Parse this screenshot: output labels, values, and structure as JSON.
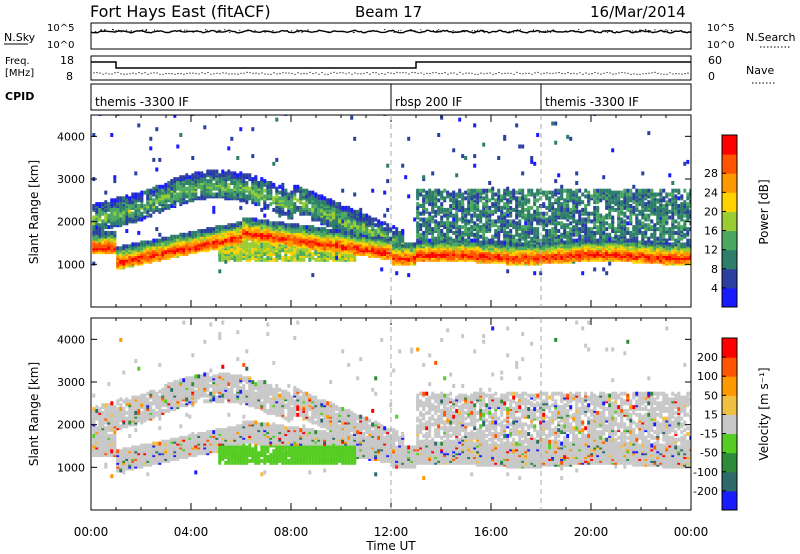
{
  "title": {
    "station": "Fort Hays East (fitACF)",
    "beam": "Beam 17",
    "date": "16/Mar/2014"
  },
  "top_panel": {
    "left_label": "N.Sky",
    "right_label": "N.Search",
    "left_ticks": [
      "10^5",
      "10^0"
    ],
    "right_ticks": [
      "10^5",
      "10^0"
    ]
  },
  "freq_panel": {
    "left_label_1": "Freq.",
    "left_label_2": "[MHz]",
    "right_label": "Nave",
    "left_ticks": [
      "18",
      "8"
    ],
    "right_ticks": [
      "60",
      "0"
    ],
    "freq_segments": [
      {
        "t0": 0.0,
        "t1": 1.0,
        "mhz": 16
      },
      {
        "t0": 1.0,
        "t1": 13.0,
        "mhz": 13
      },
      {
        "t0": 13.0,
        "t1": 24.0,
        "mhz": 16
      }
    ],
    "nave_level": 18
  },
  "cpid": {
    "label": "CPID",
    "modes": [
      {
        "name": "themis -3300 IF",
        "t": 0.0
      },
      {
        "name": "rbsp 200 IF",
        "t": 12.0
      },
      {
        "name": "themis -3300 IF",
        "t": 18.0
      }
    ]
  },
  "chart_data": [
    {
      "type": "heatmap",
      "title": "",
      "ylabel": "Slant Range [km]",
      "xlabel": "",
      "x_range_hours": [
        0,
        24
      ],
      "ylim": [
        0,
        4500
      ],
      "yticks": [
        1000,
        2000,
        3000,
        4000
      ],
      "colorbar": {
        "label": "Power [dB]",
        "ticks": [
          "4",
          "8",
          "12",
          "16",
          "20",
          "24",
          "28"
        ],
        "colors": [
          "#1a1aff",
          "#2b3fa0",
          "#2e7d6a",
          "#4aa860",
          "#9acd32",
          "#ffd200",
          "#ff9900",
          "#ff5500",
          "#ff0000"
        ]
      }
    },
    {
      "type": "heatmap",
      "title": "",
      "ylabel": "Slant Range [km]",
      "xlabel": "Time UT",
      "x_range_hours": [
        0,
        24
      ],
      "ylim": [
        0,
        4500
      ],
      "yticks": [
        1000,
        2000,
        3000,
        4000
      ],
      "xticks": [
        "00:00",
        "04:00",
        "08:00",
        "12:00",
        "16:00",
        "20:00",
        "00:00"
      ],
      "colorbar": {
        "label": "Velocity [m s⁻¹]",
        "ticks": [
          "200",
          "100",
          "50",
          "15",
          "-15",
          "-50",
          "-100",
          "-200"
        ],
        "colors": [
          "#1a1aff",
          "#2e6a6a",
          "#2e8b3a",
          "#55cc22",
          "#c8c8c8",
          "#f0c040",
          "#ff9900",
          "#ff5500",
          "#ff0000"
        ]
      }
    }
  ]
}
